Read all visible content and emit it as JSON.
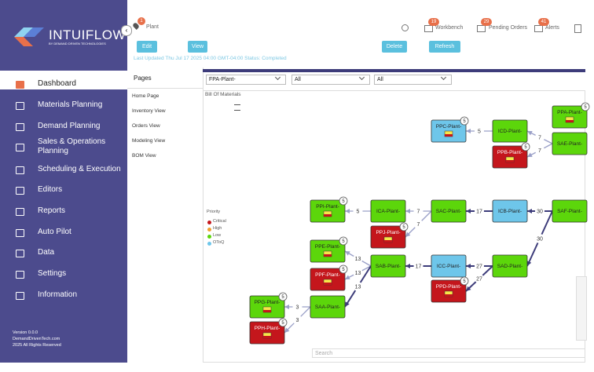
{
  "sidebar": {
    "logo": "INTUIFLOW",
    "tagline": "BY DEMAND DRIVEN TECHNOLOGIES",
    "menu": [
      "Dashboard",
      "Materials Planning",
      "Demand Planning",
      "Sales & Operations Planning",
      "Scheduling & Execution",
      "Editors",
      "Reports",
      "Auto Pilot",
      "Data",
      "Settings",
      "Information"
    ],
    "footer": [
      "Version 0.0.0",
      "DemandDrivenTech.com",
      "2025 All Rights Reserved"
    ]
  },
  "header": {
    "plant": "Plant",
    "plant_badge": 1,
    "buttons": [
      "Edit",
      "View",
      "Delete",
      "Refresh"
    ],
    "status": "Last Updated Thu Jul 17 2025 04:00 GMT-04:00 Status: Completed",
    "nav": [
      {
        "label": "Workbench",
        "badge": 19
      },
      {
        "label": "Pending Orders",
        "badge": 29
      },
      {
        "label": "Alerts",
        "badge": 41
      }
    ]
  },
  "pages": {
    "title": "Pages",
    "items": [
      "Home Page",
      "Inventory View",
      "Orders View",
      "Modeling View",
      "BOM View"
    ]
  },
  "filters": [
    "FPA-Plant-",
    "All",
    "All"
  ],
  "diagram": {
    "title": "Bill Of Materials",
    "search": "Search",
    "legend": {
      "title": "Priority",
      "items": [
        {
          "label": "Critical",
          "color": "#c4161c"
        },
        {
          "label": "High",
          "color": "#f0a030"
        },
        {
          "label": "Low",
          "color": "#5cd60b"
        },
        {
          "label": "OToQ",
          "color": "#6ec6ea"
        }
      ]
    },
    "nodes": [
      {
        "label": "PPA-Plant-",
        "color": "#5cd60b",
        "badge": 5
      },
      {
        "label": "SAE-Plant-",
        "color": "#5cd60b"
      },
      {
        "label": "ICD-Plant-",
        "color": "#5cd60b"
      },
      {
        "label": "PPC-Plant-",
        "color": "#6ec6ea",
        "badge": 5
      },
      {
        "label": "PPB-Plant-",
        "color": "#c4161c",
        "badge": 5
      },
      {
        "label": "PPI-Plant-",
        "color": "#5cd60b",
        "badge": 5
      },
      {
        "label": "ICA-Plant-",
        "color": "#5cd60b"
      },
      {
        "label": "SAC-Plant-",
        "color": "#5cd60b"
      },
      {
        "label": "ICB-Plant-",
        "color": "#6ec6ea"
      },
      {
        "label": "SAF-Plant-",
        "color": "#5cd60b"
      },
      {
        "label": "PPJ-Plant-",
        "color": "#c4161c",
        "badge": 5
      },
      {
        "label": "PPE-Plant-",
        "color": "#5cd60b",
        "badge": 5
      },
      {
        "label": "SAB-Plant-",
        "color": "#5cd60b"
      },
      {
        "label": "ICC-Plant-",
        "color": "#6ec6ea"
      },
      {
        "label": "SAD-Plant-",
        "color": "#5cd60b"
      },
      {
        "label": "PPF-Plant-",
        "color": "#c4161c",
        "badge": 5
      },
      {
        "label": "PPD-Plant-",
        "color": "#c4161c",
        "badge": 5
      },
      {
        "label": "PPG-Plant-",
        "color": "#5cd60b",
        "badge": 5
      },
      {
        "label": "SAA-Plant-",
        "color": "#5cd60b"
      },
      {
        "label": "PPH-Plant-",
        "color": "#c4161c",
        "badge": 5
      }
    ],
    "edge_labels": [
      5,
      7,
      7,
      5,
      7,
      17,
      30,
      7,
      13,
      17,
      27,
      30,
      13,
      27,
      13,
      3,
      3
    ]
  }
}
